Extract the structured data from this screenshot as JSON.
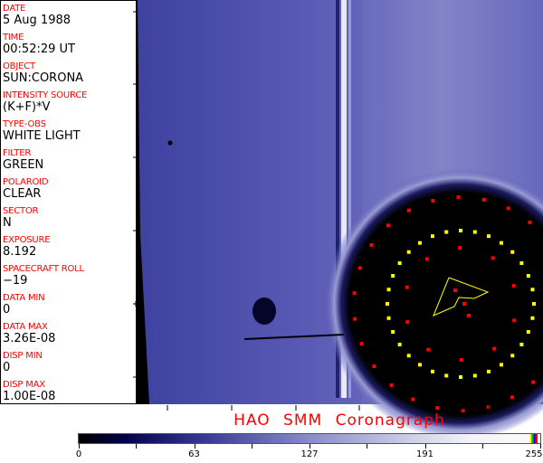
{
  "header_fields": [
    {
      "label": "DATE",
      "value": "5 Aug 1988"
    },
    {
      "label": "TIME",
      "value": "00:52:29 UT"
    },
    {
      "label": "OBJECT",
      "value": "SUN:CORONA"
    },
    {
      "label": "INTENSITY SOURCE",
      "value": "(K+F)*V"
    },
    {
      "label": "TYPE-OBS",
      "value": "WHITE LIGHT"
    },
    {
      "label": "FILTER",
      "value": "GREEN"
    },
    {
      "label": "POLAROID",
      "value": "CLEAR"
    },
    {
      "label": "SECTOR",
      "value": "N"
    },
    {
      "label": "EXPOSURE",
      "value": "8.192"
    },
    {
      "label": "SPACECRAFT ROLL",
      "value": "−19"
    },
    {
      "label": "DATA MIN",
      "value": "0"
    },
    {
      "label": "DATA MAX",
      "value": "3.26E-08"
    },
    {
      "label": "DISP MIN",
      "value": "0"
    },
    {
      "label": "DISP MAX",
      "value": "1.00E-08"
    }
  ],
  "title": "HAO  SMM Coronagraph",
  "colorbar": {
    "ticks": [
      "0",
      "63",
      "127",
      "191",
      "255"
    ],
    "colors": {
      "low": "#000000",
      "mid": "#3a3c98",
      "high": "#fafafa",
      "overlay": [
        "#ffff00",
        "#00c000",
        "#0000ff",
        "#ff0000"
      ]
    }
  },
  "overlay_colors": {
    "red": "#ff0000",
    "yellow": "#ffff00",
    "image_blue": "#4a4ca8"
  }
}
